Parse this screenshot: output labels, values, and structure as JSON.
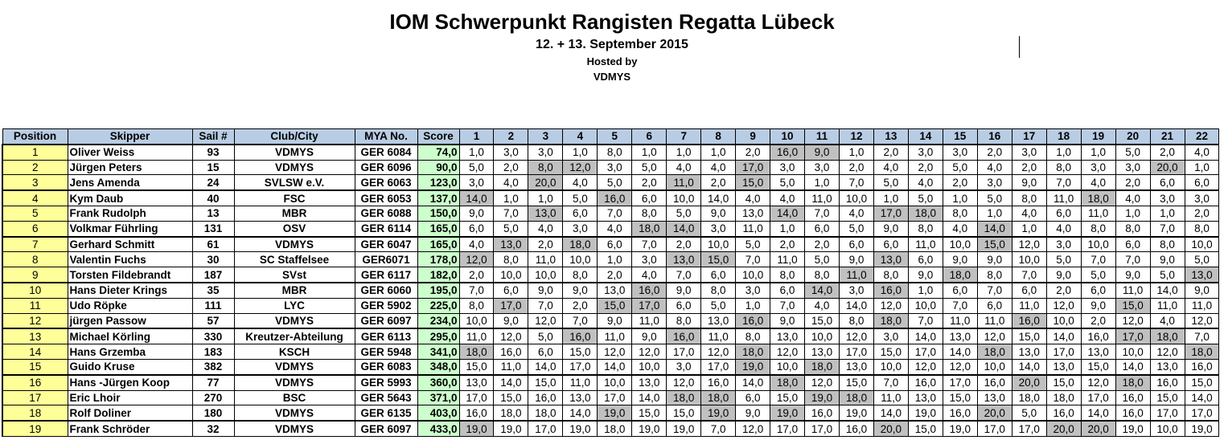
{
  "header": {
    "title": "IOM Schwerpunkt Rangisten Regatta Lübeck",
    "subtitle": "12. + 13. September 2015",
    "hosted_label": "Hosted by",
    "host": "VDMYS"
  },
  "table": {
    "columns": [
      "Position",
      "Skipper",
      "Sail #",
      "Club/City",
      "MYA No.",
      "Score",
      "1",
      "2",
      "3",
      "4",
      "5",
      "6",
      "7",
      "8",
      "9",
      "10",
      "11",
      "12",
      "13",
      "14",
      "15",
      "16",
      "17",
      "18",
      "19",
      "20",
      "21",
      "22"
    ],
    "rows": [
      {
        "position": "1",
        "skipper": "Oliver Weiss",
        "sail": "93",
        "club": "VDMYS",
        "mya": "GER 6084",
        "score": "74,0",
        "races": [
          "1,0",
          "3,0",
          "3,0",
          "1,0",
          "8,0",
          "1,0",
          "1,0",
          "1,0",
          "2,0",
          "16,0",
          "9,0",
          "1,0",
          "2,0",
          "3,0",
          "3,0",
          "2,0",
          "3,0",
          "1,0",
          "1,0",
          "5,0",
          "2,0",
          "4,0"
        ],
        "shaded": [
          9,
          10
        ]
      },
      {
        "position": "2",
        "skipper": "Jürgen Peters",
        "sail": "15",
        "club": "VDMYS",
        "mya": "GER 6096",
        "score": "90,0",
        "races": [
          "5,0",
          "2,0",
          "8,0",
          "12,0",
          "3,0",
          "5,0",
          "4,0",
          "4,0",
          "17,0",
          "3,0",
          "3,0",
          "2,0",
          "4,0",
          "2,0",
          "5,0",
          "4,0",
          "2,0",
          "8,0",
          "3,0",
          "3,0",
          "20,0",
          "1,0"
        ],
        "shaded": [
          2,
          3,
          8,
          20
        ]
      },
      {
        "position": "3",
        "skipper": "Jens Amenda",
        "sail": "24",
        "club": "SVLSW e.V.",
        "mya": "GER 6063",
        "score": "123,0",
        "races": [
          "3,0",
          "4,0",
          "20,0",
          "4,0",
          "5,0",
          "2,0",
          "11,0",
          "2,0",
          "15,0",
          "5,0",
          "1,0",
          "7,0",
          "5,0",
          "4,0",
          "2,0",
          "3,0",
          "9,0",
          "7,0",
          "4,0",
          "2,0",
          "6,0",
          "6,0"
        ],
        "shaded": [
          2,
          6,
          8
        ]
      },
      {
        "position": "4",
        "skipper": "Kym Daub",
        "sail": "40",
        "club": "FSC",
        "mya": "GER 6053",
        "score": "137,0",
        "races": [
          "14,0",
          "1,0",
          "1,0",
          "5,0",
          "16,0",
          "6,0",
          "10,0",
          "14,0",
          "4,0",
          "4,0",
          "11,0",
          "10,0",
          "1,0",
          "5,0",
          "1,0",
          "5,0",
          "8,0",
          "11,0",
          "18,0",
          "4,0",
          "3,0",
          "3,0"
        ],
        "shaded": [
          0,
          4,
          18
        ]
      },
      {
        "position": "5",
        "skipper": "Frank Rudolph",
        "sail": "13",
        "club": "MBR",
        "mya": "GER 6088",
        "score": "150,0",
        "races": [
          "9,0",
          "7,0",
          "13,0",
          "6,0",
          "7,0",
          "8,0",
          "5,0",
          "9,0",
          "13,0",
          "14,0",
          "7,0",
          "4,0",
          "17,0",
          "18,0",
          "8,0",
          "1,0",
          "4,0",
          "6,0",
          "11,0",
          "1,0",
          "1,0",
          "2,0"
        ],
        "shaded": [
          2,
          9,
          12,
          13
        ]
      },
      {
        "position": "6",
        "skipper": "Volkmar Führling",
        "sail": "131",
        "club": "OSV",
        "mya": "GER 6114",
        "score": "165,0",
        "races": [
          "6,0",
          "5,0",
          "4,0",
          "3,0",
          "4,0",
          "18,0",
          "14,0",
          "3,0",
          "11,0",
          "1,0",
          "6,0",
          "5,0",
          "9,0",
          "8,0",
          "4,0",
          "14,0",
          "1,0",
          "4,0",
          "8,0",
          "8,0",
          "7,0",
          "8,0"
        ],
        "shaded": [
          5,
          6,
          15
        ]
      },
      {
        "position": "7",
        "skipper": "Gerhard Schmitt",
        "sail": "61",
        "club": "VDMYS",
        "mya": "GER 6047",
        "score": "165,0",
        "races": [
          "4,0",
          "13,0",
          "2,0",
          "18,0",
          "6,0",
          "7,0",
          "2,0",
          "10,0",
          "5,0",
          "2,0",
          "2,0",
          "6,0",
          "6,0",
          "11,0",
          "10,0",
          "15,0",
          "12,0",
          "3,0",
          "10,0",
          "6,0",
          "8,0",
          "10,0"
        ],
        "shaded": [
          1,
          3,
          15
        ]
      },
      {
        "position": "8",
        "skipper": "Valentin Fuchs",
        "sail": "30",
        "club": "SC Staffelsee",
        "mya": "GER6071",
        "score": "178,0",
        "races": [
          "12,0",
          "8,0",
          "11,0",
          "10,0",
          "1,0",
          "3,0",
          "13,0",
          "15,0",
          "7,0",
          "11,0",
          "5,0",
          "9,0",
          "13,0",
          "6,0",
          "9,0",
          "9,0",
          "10,0",
          "5,0",
          "7,0",
          "7,0",
          "9,0",
          "5,0"
        ],
        "shaded": [
          0,
          6,
          7,
          12
        ]
      },
      {
        "position": "9",
        "skipper": "Torsten Fildebrandt",
        "sail": "187",
        "club": "SVst",
        "mya": "GER 6117",
        "score": "182,0",
        "races": [
          "2,0",
          "10,0",
          "10,0",
          "8,0",
          "2,0",
          "4,0",
          "7,0",
          "6,0",
          "10,0",
          "8,0",
          "8,0",
          "11,0",
          "8,0",
          "9,0",
          "18,0",
          "8,0",
          "7,0",
          "9,0",
          "5,0",
          "9,0",
          "5,0",
          "13,0"
        ],
        "shaded": [
          11,
          14,
          21
        ]
      },
      {
        "position": "10",
        "skipper": "Hans Dieter Krings",
        "sail": "35",
        "club": "MBR",
        "mya": "GER 6060",
        "score": "195,0",
        "races": [
          "7,0",
          "6,0",
          "9,0",
          "9,0",
          "13,0",
          "16,0",
          "9,0",
          "8,0",
          "3,0",
          "6,0",
          "14,0",
          "3,0",
          "16,0",
          "1,0",
          "6,0",
          "7,0",
          "6,0",
          "2,0",
          "6,0",
          "11,0",
          "14,0",
          "9,0"
        ],
        "shaded": [
          5,
          10,
          12
        ]
      },
      {
        "position": "11",
        "skipper": "Udo Röpke",
        "sail": "111",
        "club": "LYC",
        "mya": "GER 5902",
        "score": "225,0",
        "races": [
          "8,0",
          "17,0",
          "7,0",
          "2,0",
          "15,0",
          "17,0",
          "6,0",
          "5,0",
          "1,0",
          "7,0",
          "4,0",
          "14,0",
          "12,0",
          "10,0",
          "7,0",
          "6,0",
          "11,0",
          "12,0",
          "9,0",
          "15,0",
          "11,0",
          "11,0"
        ],
        "shaded": [
          1,
          4,
          5,
          19
        ]
      },
      {
        "position": "12",
        "skipper": "jürgen Passow",
        "sail": "57",
        "club": "VDMYS",
        "mya": "GER 6097",
        "score": "234,0",
        "races": [
          "10,0",
          "9,0",
          "12,0",
          "7,0",
          "9,0",
          "11,0",
          "8,0",
          "13,0",
          "16,0",
          "9,0",
          "15,0",
          "8,0",
          "18,0",
          "7,0",
          "11,0",
          "11,0",
          "16,0",
          "10,0",
          "2,0",
          "12,0",
          "4,0",
          "12,0"
        ],
        "shaded": [
          8,
          12,
          16
        ]
      },
      {
        "position": "13",
        "skipper": "Michael Körling",
        "sail": "330",
        "club": "Kreutzer-Abteilung",
        "mya": "GER 6113",
        "score": "295,0",
        "races": [
          "11,0",
          "12,0",
          "5,0",
          "16,0",
          "11,0",
          "9,0",
          "16,0",
          "11,0",
          "8,0",
          "13,0",
          "10,0",
          "12,0",
          "3,0",
          "14,0",
          "13,0",
          "12,0",
          "15,0",
          "14,0",
          "16,0",
          "17,0",
          "18,0",
          "7,0"
        ],
        "shaded": [
          3,
          6,
          19,
          20
        ]
      },
      {
        "position": "14",
        "skipper": "Hans Grzemba",
        "sail": "183",
        "club": "KSCH",
        "mya": "GER 5948",
        "score": "341,0",
        "races": [
          "18,0",
          "16,0",
          "6,0",
          "15,0",
          "12,0",
          "12,0",
          "17,0",
          "12,0",
          "18,0",
          "12,0",
          "13,0",
          "17,0",
          "15,0",
          "17,0",
          "14,0",
          "18,0",
          "13,0",
          "17,0",
          "13,0",
          "10,0",
          "12,0",
          "18,0"
        ],
        "shaded": [
          0,
          8,
          15,
          21
        ]
      },
      {
        "position": "15",
        "skipper": "Guido Kruse",
        "sail": "382",
        "club": "VDMYS",
        "mya": "GER 6083",
        "score": "348,0",
        "races": [
          "15,0",
          "11,0",
          "14,0",
          "17,0",
          "14,0",
          "10,0",
          "3,0",
          "17,0",
          "19,0",
          "10,0",
          "18,0",
          "13,0",
          "10,0",
          "12,0",
          "12,0",
          "10,0",
          "14,0",
          "13,0",
          "15,0",
          "14,0",
          "13,0",
          "16,0"
        ],
        "shaded": [
          8,
          10
        ]
      },
      {
        "position": "16",
        "skipper": "Hans -Jürgen Koop",
        "sail": "77",
        "club": "VDMYS",
        "mya": "GER 5993",
        "score": "360,0",
        "races": [
          "13,0",
          "14,0",
          "15,0",
          "11,0",
          "10,0",
          "13,0",
          "12,0",
          "16,0",
          "14,0",
          "18,0",
          "12,0",
          "15,0",
          "7,0",
          "16,0",
          "17,0",
          "16,0",
          "20,0",
          "15,0",
          "12,0",
          "18,0",
          "16,0",
          "15,0"
        ],
        "shaded": [
          9,
          16,
          19
        ]
      },
      {
        "position": "17",
        "skipper": "Eric Lhoir",
        "sail": "270",
        "club": "BSC",
        "mya": "GER 5643",
        "score": "371,0",
        "races": [
          "17,0",
          "15,0",
          "16,0",
          "13,0",
          "17,0",
          "14,0",
          "18,0",
          "18,0",
          "6,0",
          "15,0",
          "19,0",
          "18,0",
          "11,0",
          "13,0",
          "15,0",
          "13,0",
          "18,0",
          "18,0",
          "17,0",
          "16,0",
          "15,0",
          "14,0"
        ],
        "shaded": [
          6,
          7,
          10,
          11
        ]
      },
      {
        "position": "18",
        "skipper": "Rolf Doliner",
        "sail": "180",
        "club": "VDMYS",
        "mya": "GER 6135",
        "score": "403,0",
        "races": [
          "16,0",
          "18,0",
          "18,0",
          "14,0",
          "19,0",
          "15,0",
          "15,0",
          "19,0",
          "9,0",
          "19,0",
          "16,0",
          "19,0",
          "14,0",
          "19,0",
          "16,0",
          "20,0",
          "5,0",
          "16,0",
          "14,0",
          "16,0",
          "17,0",
          "17,0"
        ],
        "shaded": [
          4,
          7,
          9,
          15
        ]
      },
      {
        "position": "19",
        "skipper": "Frank Schröder",
        "sail": "32",
        "club": "VDMYS",
        "mya": "GER 6097",
        "score": "433,0",
        "races": [
          "19,0",
          "19,0",
          "17,0",
          "19,0",
          "18,0",
          "19,0",
          "19,0",
          "7,0",
          "12,0",
          "17,0",
          "17,0",
          "16,0",
          "20,0",
          "15,0",
          "19,0",
          "17,0",
          "17,0",
          "20,0",
          "20,0",
          "19,0",
          "10,0",
          "19,0"
        ],
        "shaded": [
          0,
          12,
          17,
          18
        ]
      }
    ]
  }
}
